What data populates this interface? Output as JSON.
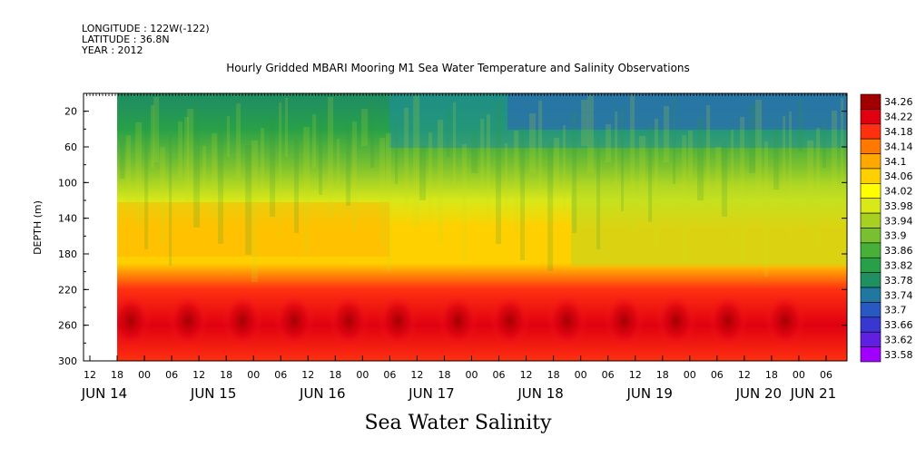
{
  "header": {
    "longitude": "LONGITUDE : 122W(-122)",
    "latitude": "LATITUDE : 36.8N",
    "year": "YEAR : 2012",
    "title": "Hourly Gridded MBARI Mooring M1 Sea Water Temperature and Salinity Observations",
    "variable": "Sea Water Salinity"
  },
  "chart_data": {
    "type": "heatmap",
    "title": "Hourly Gridded MBARI Mooring M1 Sea Water Temperature and Salinity Observations",
    "ylabel": "DEPTH (m)",
    "xlabel": "Sea Water Salinity",
    "y_reversed": true,
    "ylim": [
      0,
      300
    ],
    "y_ticks": [
      20,
      60,
      100,
      140,
      180,
      220,
      260,
      300
    ],
    "x_hour_ticks": [
      "12",
      "18",
      "00",
      "06",
      "12",
      "18",
      "00",
      "06",
      "12",
      "18",
      "00",
      "06",
      "12",
      "18",
      "00",
      "06",
      "12",
      "18",
      "00",
      "06",
      "12",
      "18",
      "00",
      "06",
      "12",
      "18",
      "00",
      "06"
    ],
    "x_day_labels": [
      "JUN 14",
      "JUN 15",
      "JUN 16",
      "JUN 17",
      "JUN 18",
      "JUN 19",
      "JUN 20",
      "JUN 21"
    ],
    "data_start": "JUN 14 18:00",
    "colorbar_levels": [
      33.58,
      33.62,
      33.66,
      33.7,
      33.74,
      33.78,
      33.82,
      33.86,
      33.9,
      33.94,
      33.98,
      34.02,
      34.06,
      34.1,
      34.14,
      34.18,
      34.22,
      34.26
    ],
    "colorbar_labels": [
      "34.26",
      "34.22",
      "34.18",
      "34.14",
      "34.1",
      "34.06",
      "34.02",
      "33.98",
      "33.94",
      "33.9",
      "33.86",
      "33.82",
      "33.78",
      "33.74",
      "33.7",
      "33.66",
      "33.62",
      "33.58"
    ],
    "depth_profile": [
      {
        "depth": 10,
        "salinity": 33.78
      },
      {
        "depth": 40,
        "salinity": 33.84
      },
      {
        "depth": 80,
        "salinity": 33.92
      },
      {
        "depth": 120,
        "salinity": 34.0
      },
      {
        "depth": 150,
        "salinity": 34.08
      },
      {
        "depth": 190,
        "salinity": 34.06
      },
      {
        "depth": 220,
        "salinity": 34.18
      },
      {
        "depth": 260,
        "salinity": 34.24
      },
      {
        "depth": 300,
        "salinity": 34.2
      }
    ],
    "colors": {
      "min": "#a000ff",
      "low": "#2050c8",
      "mid": "#30a030",
      "high_mid": "#f0f000",
      "high": "#ff8000",
      "max": "#a00000"
    }
  }
}
